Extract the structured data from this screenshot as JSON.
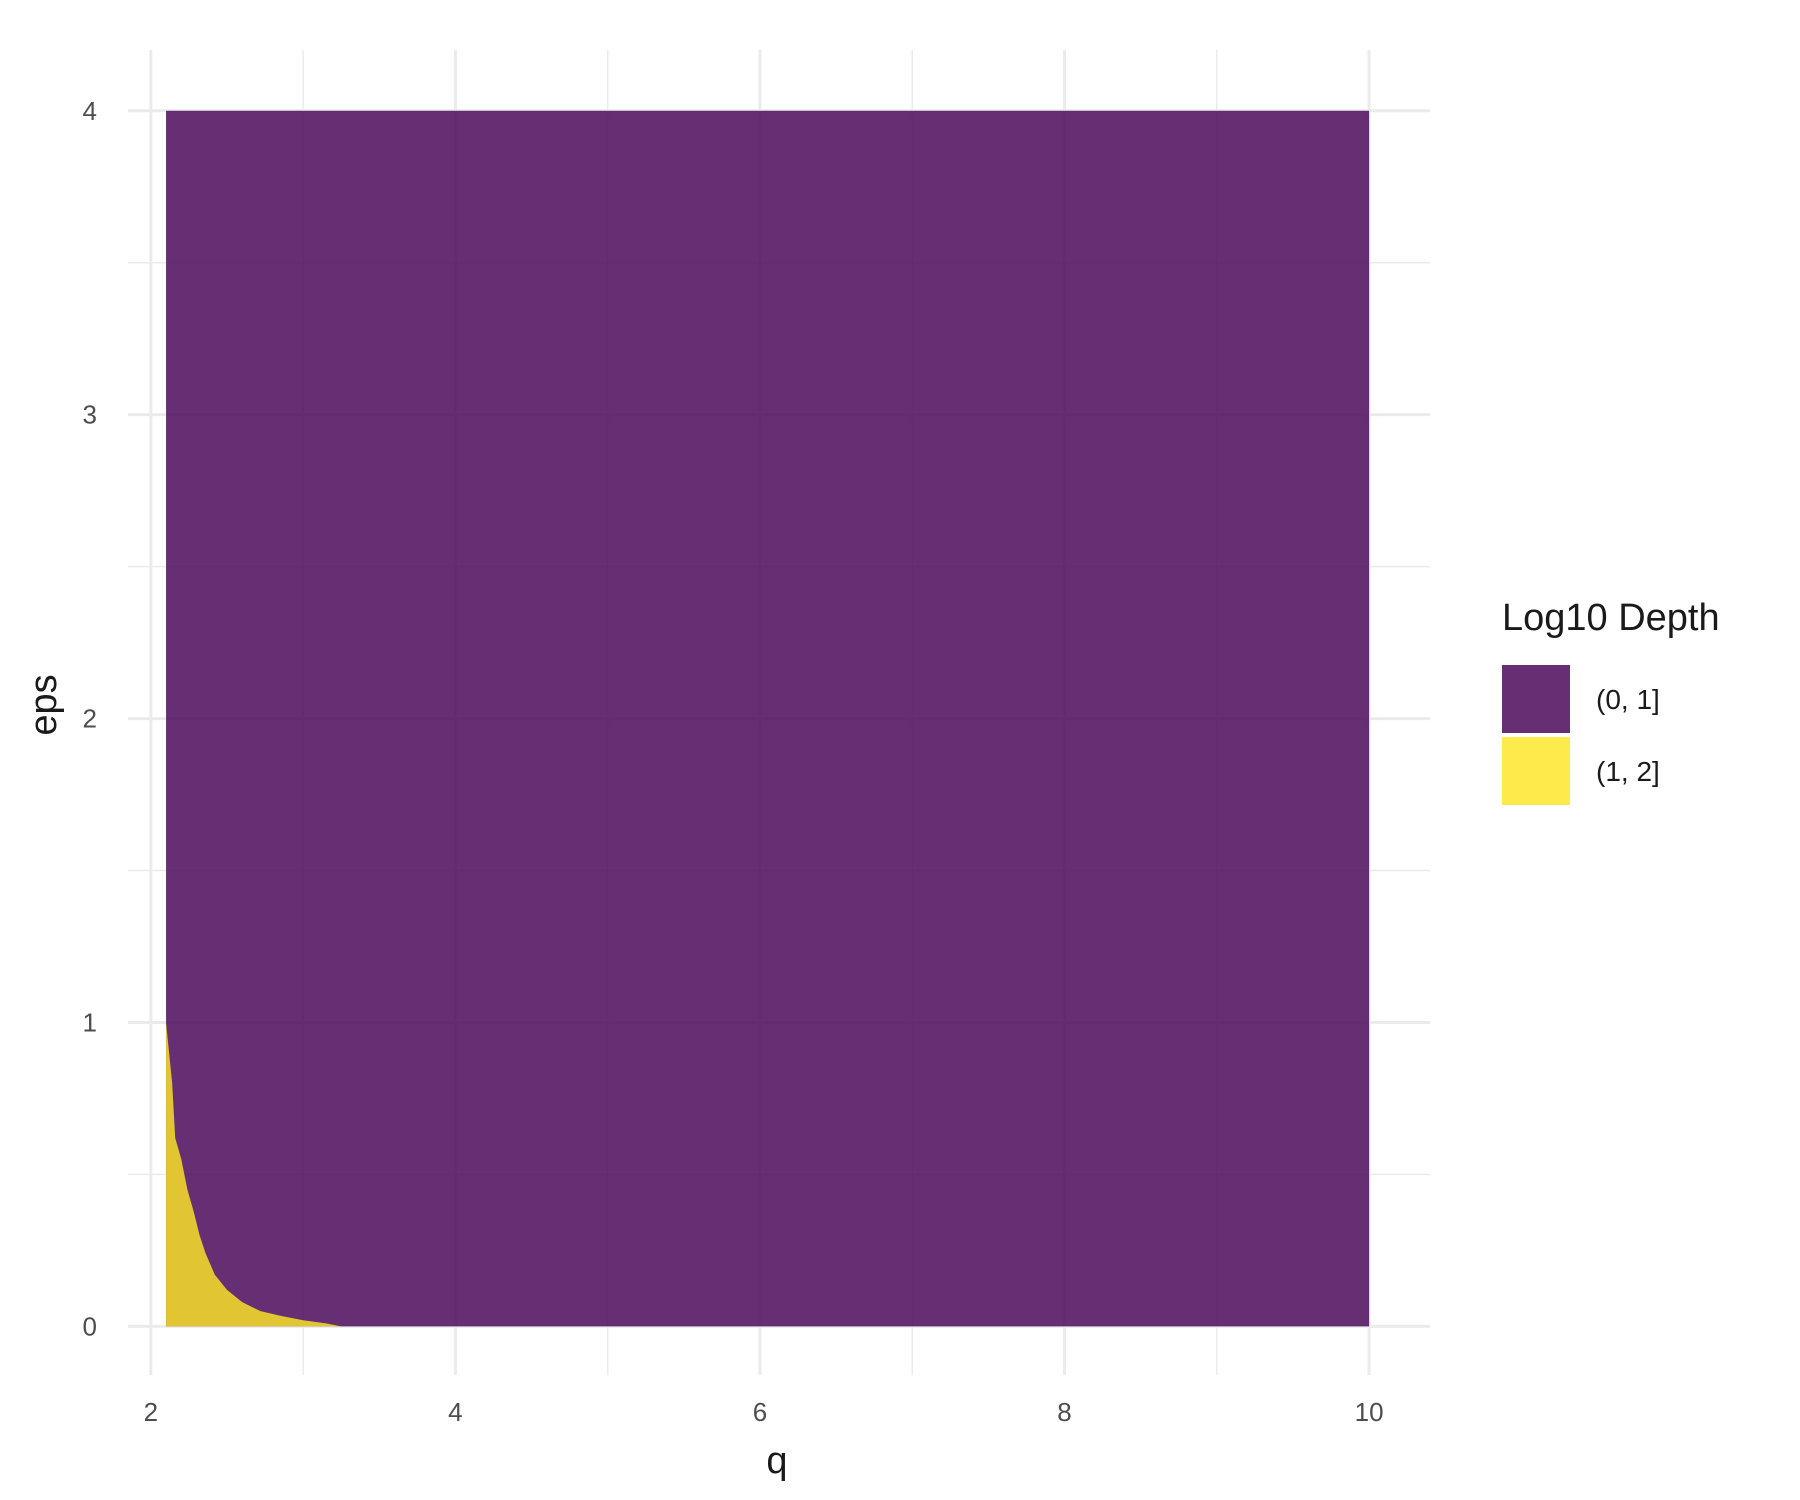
{
  "chart_data": {
    "type": "area",
    "xlabel": "q",
    "ylabel": "eps",
    "xlim": [
      1.85,
      10.4
    ],
    "ylim": [
      -0.16,
      4.2
    ],
    "x_ticks": [
      2,
      4,
      6,
      8,
      10
    ],
    "y_ticks": [
      0,
      1,
      2,
      3,
      4
    ],
    "grid": true,
    "domain": {
      "x": [
        2.1,
        10
      ],
      "y": [
        0,
        4
      ]
    },
    "legend": {
      "title": "Log10 Depth",
      "position": "right",
      "entries": [
        {
          "label": "(0, 1]",
          "color": "#440154"
        },
        {
          "label": "(1, 2]",
          "color": "#FDE725"
        }
      ]
    },
    "series": [
      {
        "name": "(0, 1]",
        "color": "#440154",
        "region": "rest of domain"
      },
      {
        "name": "(1, 2]",
        "color": "#FDE725",
        "boundary": [
          {
            "x": 2.1,
            "y": 1.0
          },
          {
            "x": 2.14,
            "y": 0.8
          },
          {
            "x": 2.16,
            "y": 0.62
          },
          {
            "x": 2.2,
            "y": 0.55
          },
          {
            "x": 2.24,
            "y": 0.45
          },
          {
            "x": 2.28,
            "y": 0.38
          },
          {
            "x": 2.32,
            "y": 0.3
          },
          {
            "x": 2.36,
            "y": 0.24
          },
          {
            "x": 2.42,
            "y": 0.17
          },
          {
            "x": 2.5,
            "y": 0.12
          },
          {
            "x": 2.6,
            "y": 0.08
          },
          {
            "x": 2.72,
            "y": 0.05
          },
          {
            "x": 2.85,
            "y": 0.035
          },
          {
            "x": 3.0,
            "y": 0.02
          },
          {
            "x": 3.15,
            "y": 0.01
          },
          {
            "x": 3.25,
            "y": 0.0
          }
        ]
      }
    ]
  }
}
